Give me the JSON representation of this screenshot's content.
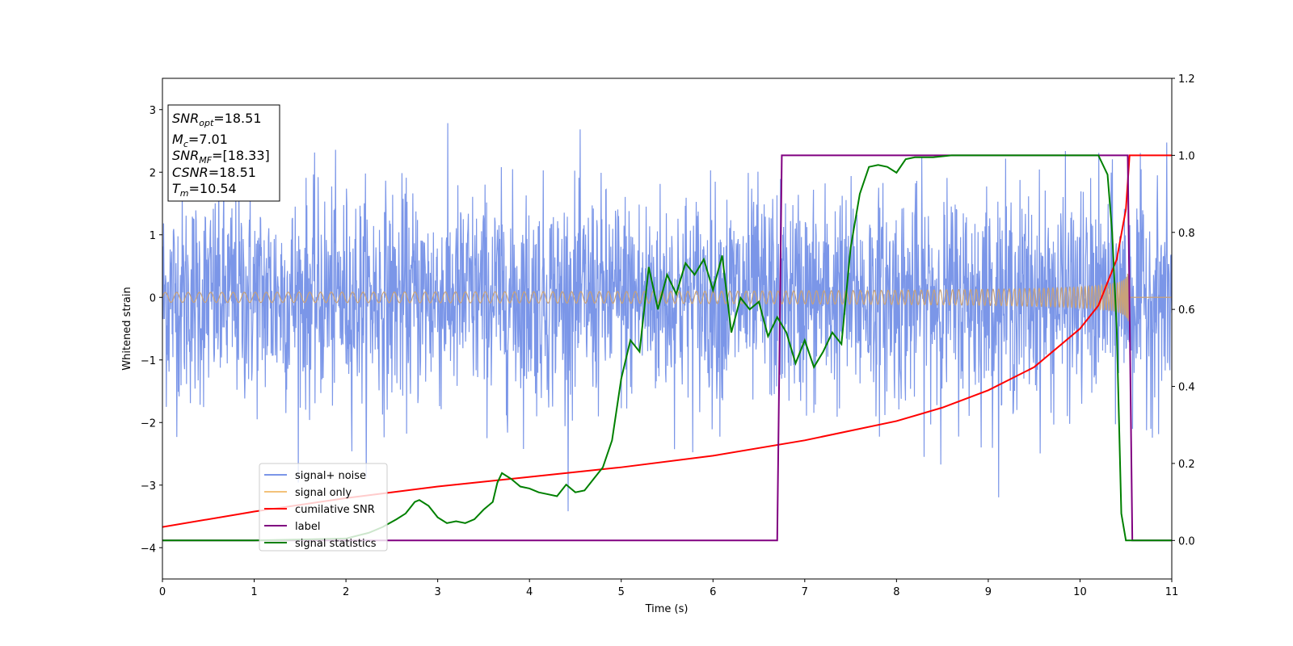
{
  "chart_data": {
    "type": "line",
    "title": "",
    "xlabel": "Time (s)",
    "ylabel": "Whitened strain",
    "xlim": [
      0,
      11
    ],
    "ylim": [
      -4.5,
      3.5
    ],
    "y2lim": [
      -0.1,
      1.2
    ],
    "xticks": [
      "0",
      "1",
      "2",
      "3",
      "4",
      "5",
      "6",
      "7",
      "8",
      "9",
      "10",
      "11"
    ],
    "yticks": [
      "−4",
      "−3",
      "−2",
      "−1",
      "0",
      "1",
      "2",
      "3"
    ],
    "y2ticks": [
      "0.0",
      "0.2",
      "0.4",
      "0.6",
      "0.8",
      "1.0",
      "1.2"
    ],
    "grid": false,
    "legend_position": "lower-left",
    "stats_box": {
      "snr_opt": {
        "base": "SNR",
        "sub": "opt",
        "value": "=18.51"
      },
      "mc": {
        "base": "M",
        "sub": "c",
        "value": "=7.01"
      },
      "snr_mf": {
        "base": "SNR",
        "sub": "MF",
        "value": "=[18.33]"
      },
      "csnr": {
        "base": "CSNR",
        "value": "=18.51"
      },
      "tm": {
        "base": "T",
        "sub": "m",
        "value": "=10.54"
      }
    },
    "series": [
      {
        "name": "signal+ noise",
        "color": "#7b96e8",
        "axis": "left",
        "kind": "noise",
        "noise_std": 0.85,
        "noise_range": [
          -4.15,
          3.15
        ],
        "x_range": [
          0,
          11
        ]
      },
      {
        "name": "signal only",
        "color": "#f3c27a",
        "axis": "left",
        "kind": "chirp",
        "amplitude_start": 0.08,
        "amplitude_peak": 1.3,
        "merger_time": 10.54
      },
      {
        "name": "cumilative SNR",
        "color": "#ff0000",
        "axis": "right",
        "x": [
          0,
          1,
          2,
          3,
          4,
          5,
          6,
          7,
          7.5,
          8,
          8.5,
          9,
          9.5,
          10,
          10.2,
          10.4,
          10.5,
          10.54,
          11
        ],
        "y": [
          0.035,
          0.075,
          0.11,
          0.14,
          0.165,
          0.19,
          0.22,
          0.26,
          0.285,
          0.31,
          0.345,
          0.39,
          0.45,
          0.55,
          0.61,
          0.73,
          0.86,
          1.0,
          1.0
        ]
      },
      {
        "name": "label",
        "color": "#800080",
        "axis": "right",
        "x": [
          0,
          6.7,
          6.75,
          10.52,
          10.57,
          11
        ],
        "y": [
          0.0,
          0.0,
          1.0,
          1.0,
          0.0,
          0.0
        ]
      },
      {
        "name": "signal statistics",
        "color": "#008000",
        "axis": "right",
        "x": [
          0,
          1,
          2,
          2.25,
          2.4,
          2.55,
          2.65,
          2.75,
          2.8,
          2.9,
          3.0,
          3.1,
          3.2,
          3.3,
          3.4,
          3.5,
          3.6,
          3.65,
          3.7,
          3.8,
          3.9,
          4.0,
          4.1,
          4.2,
          4.3,
          4.4,
          4.5,
          4.6,
          4.7,
          4.8,
          4.9,
          5.0,
          5.1,
          5.2,
          5.3,
          5.4,
          5.5,
          5.6,
          5.7,
          5.8,
          5.9,
          6.0,
          6.1,
          6.2,
          6.3,
          6.4,
          6.5,
          6.6,
          6.7,
          6.8,
          6.9,
          7.0,
          7.1,
          7.2,
          7.3,
          7.4,
          7.5,
          7.6,
          7.7,
          7.8,
          7.9,
          8.0,
          8.1,
          8.2,
          8.4,
          8.6,
          8.8,
          9.0,
          9.5,
          10.0,
          10.2,
          10.3,
          10.35,
          10.4,
          10.45,
          10.5,
          10.55,
          10.6,
          11
        ],
        "y": [
          0.0,
          0.0,
          0.005,
          0.02,
          0.035,
          0.055,
          0.07,
          0.1,
          0.105,
          0.09,
          0.06,
          0.045,
          0.05,
          0.045,
          0.055,
          0.08,
          0.1,
          0.15,
          0.175,
          0.16,
          0.14,
          0.135,
          0.125,
          0.12,
          0.115,
          0.145,
          0.125,
          0.13,
          0.16,
          0.19,
          0.26,
          0.42,
          0.52,
          0.49,
          0.71,
          0.6,
          0.69,
          0.64,
          0.72,
          0.69,
          0.73,
          0.65,
          0.74,
          0.54,
          0.63,
          0.6,
          0.62,
          0.53,
          0.58,
          0.54,
          0.46,
          0.52,
          0.45,
          0.49,
          0.54,
          0.51,
          0.76,
          0.9,
          0.97,
          0.975,
          0.97,
          0.955,
          0.99,
          0.995,
          0.995,
          1.0,
          1.0,
          1.0,
          1.0,
          1.0,
          1.0,
          0.95,
          0.8,
          0.55,
          0.07,
          0.0,
          0.0,
          0.0,
          0.0
        ]
      }
    ]
  }
}
